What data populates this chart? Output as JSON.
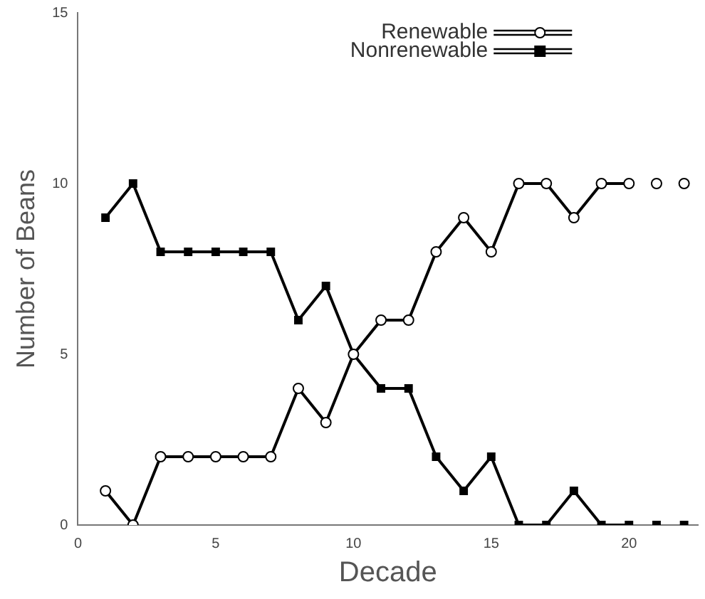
{
  "chart_data": {
    "type": "line",
    "xlabel": "Decade",
    "ylabel": "Number of Beans",
    "xlim": [
      0,
      22.5
    ],
    "xticks": [
      0,
      5,
      10,
      15,
      20
    ],
    "ylim": [
      0,
      15
    ],
    "yticks": [
      0,
      5,
      10,
      15
    ],
    "grid": false,
    "legend": "top right",
    "series": [
      {
        "name": "Renewable",
        "color": "#000000",
        "marker": "circle",
        "x": [
          1,
          2,
          3,
          4,
          5,
          6,
          7,
          8,
          9,
          10,
          11,
          12,
          13,
          14,
          15,
          16,
          17,
          18,
          19,
          20
        ],
        "values": [
          1,
          0,
          2,
          2,
          2,
          2,
          2,
          4,
          3,
          5,
          6,
          6,
          8,
          9,
          8,
          10,
          10,
          9,
          10,
          10
        ]
      },
      {
        "name": "Nonrenewable",
        "color": "#000000",
        "marker": "square",
        "x": [
          1,
          2,
          3,
          4,
          5,
          6,
          7,
          8,
          9,
          10,
          11,
          12,
          13,
          14,
          15,
          16,
          17,
          18,
          19,
          20
        ],
        "values": [
          9,
          10,
          8,
          8,
          8,
          8,
          8,
          6,
          7,
          5,
          4,
          4,
          2,
          1,
          2,
          0,
          0,
          1,
          0,
          0
        ]
      },
      {
        "type": "scatter",
        "color": "#000000",
        "marker": "circle",
        "x": [
          21,
          22
        ],
        "values": [
          10,
          10
        ]
      },
      {
        "type": "scatter",
        "color": "#000000",
        "marker": "square",
        "x": [
          21,
          22
        ],
        "values": [
          0,
          0
        ]
      }
    ]
  }
}
